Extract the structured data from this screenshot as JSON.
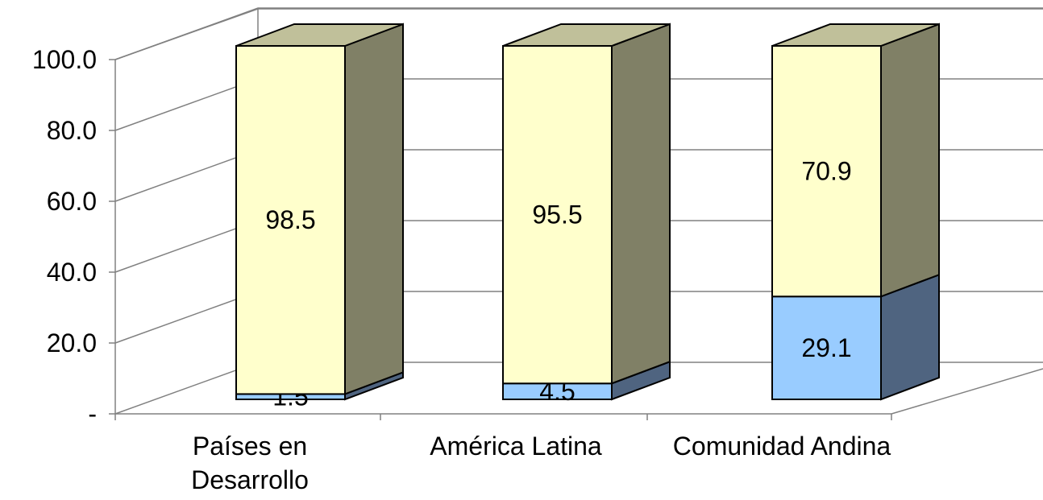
{
  "chart_data": {
    "type": "bar",
    "stacked": true,
    "three_d": true,
    "categories": [
      "Países en Desarrollo",
      "América Latina",
      "Comunidad Andina"
    ],
    "category_lines": [
      [
        "Países en",
        "Desarrollo"
      ],
      [
        "América Latina"
      ],
      [
        "Comunidad Andina"
      ]
    ],
    "series": [
      {
        "values": [
          1.5,
          4.5,
          29.1
        ],
        "color": "#99ccff",
        "side_color": "#4f6480",
        "top_color": "#99ccff"
      },
      {
        "values": [
          98.5,
          95.5,
          70.9
        ],
        "color": "#ffffcc",
        "side_color": "#808066",
        "top_color": "#c0c09a"
      }
    ],
    "data_labels": [
      [
        "1.5",
        "98.5"
      ],
      [
        "4.5",
        "95.5"
      ],
      [
        "29.1",
        "70.9"
      ]
    ],
    "yticks": [
      "-",
      "20.0",
      "40.0",
      "60.0",
      "80.0",
      "100.0"
    ],
    "ylim": [
      0,
      100
    ],
    "grid": true,
    "legend": "none"
  }
}
